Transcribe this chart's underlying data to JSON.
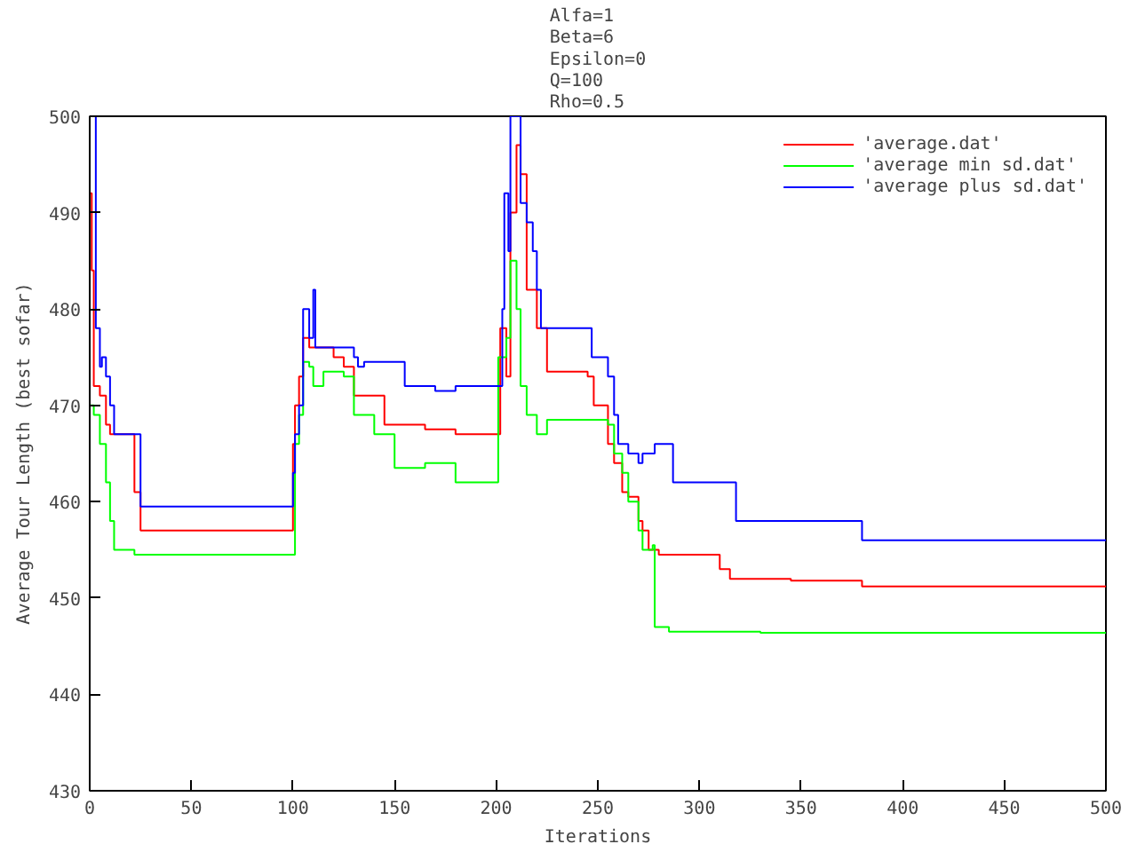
{
  "chart_data": {
    "type": "step",
    "title": "Alfa=1\nBeta=6\nEpsilon=0\nQ=100\nRho=0.5",
    "xlabel": "Iterations",
    "ylabel": "Average Tour Length (best sofar)",
    "xlim": [
      0,
      500
    ],
    "ylim": [
      430,
      500
    ],
    "xticks": [
      0,
      50,
      100,
      150,
      200,
      250,
      300,
      350,
      400,
      450,
      500
    ],
    "yticks": [
      430,
      440,
      450,
      460,
      470,
      480,
      490,
      500
    ],
    "grid": false,
    "legend": "top right",
    "series": [
      {
        "name": "'average.dat'",
        "color": "#ff0000",
        "x": [
          0,
          1,
          2,
          5,
          8,
          10,
          22,
          25,
          100,
          101,
          103,
          105,
          108,
          110,
          120,
          125,
          130,
          145,
          165,
          180,
          200,
          202,
          205,
          207,
          210,
          212,
          215,
          220,
          225,
          245,
          248,
          255,
          258,
          262,
          265,
          270,
          272,
          275,
          280,
          300,
          310,
          315,
          345,
          380,
          500
        ],
        "values": [
          492,
          484,
          472,
          471,
          468,
          467,
          461,
          457,
          466,
          470,
          473,
          477,
          476,
          476,
          475,
          474,
          471,
          468,
          467.5,
          467,
          467,
          478,
          473,
          490,
          497,
          494,
          482,
          478,
          473.5,
          473,
          470,
          466,
          464,
          461,
          460.5,
          458,
          457,
          455,
          454.5,
          454.5,
          453,
          452,
          451.8,
          451.2,
          451.2
        ]
      },
      {
        "name": "'average min sd.dat'",
        "color": "#00ff00",
        "x": [
          0,
          2,
          5,
          8,
          10,
          12,
          22,
          100,
          101,
          103,
          105,
          108,
          110,
          115,
          125,
          130,
          140,
          150,
          165,
          180,
          200,
          201,
          205,
          207,
          210,
          212,
          215,
          220,
          225,
          255,
          258,
          262,
          265,
          270,
          272,
          277,
          278,
          285,
          330,
          500
        ],
        "values": [
          470,
          469,
          466,
          462,
          458,
          455,
          454.5,
          454.5,
          466,
          469,
          474.5,
          474,
          472,
          473.5,
          473,
          469,
          467,
          463.5,
          464,
          462,
          462,
          475,
          477,
          485,
          480,
          472,
          469,
          467,
          468.5,
          468,
          465,
          463,
          460,
          457,
          455,
          455.5,
          447,
          446.5,
          446.4,
          446.4
        ]
      },
      {
        "name": "'average plus sd.dat'",
        "color": "#0000ff",
        "x": [
          0,
          3,
          5,
          6,
          8,
          10,
          12,
          25,
          100,
          101,
          103,
          105,
          108,
          110,
          111,
          120,
          130,
          132,
          135,
          155,
          170,
          180,
          200,
          203,
          204,
          206,
          207,
          210,
          212,
          215,
          218,
          220,
          222,
          245,
          247,
          255,
          258,
          260,
          265,
          270,
          272,
          278,
          285,
          287,
          315,
          318,
          345,
          380,
          500
        ],
        "values": [
          500,
          478,
          474,
          475,
          473,
          470,
          467,
          459.5,
          463,
          467,
          470,
          480,
          477,
          482,
          476,
          476,
          475,
          474,
          474.5,
          472,
          471.5,
          472,
          472,
          480,
          492,
          486,
          500,
          500,
          491,
          489,
          486,
          482,
          478,
          478,
          475,
          473,
          469,
          466,
          465,
          464,
          465,
          466,
          466,
          462,
          462,
          458,
          458,
          456,
          456
        ]
      }
    ]
  }
}
